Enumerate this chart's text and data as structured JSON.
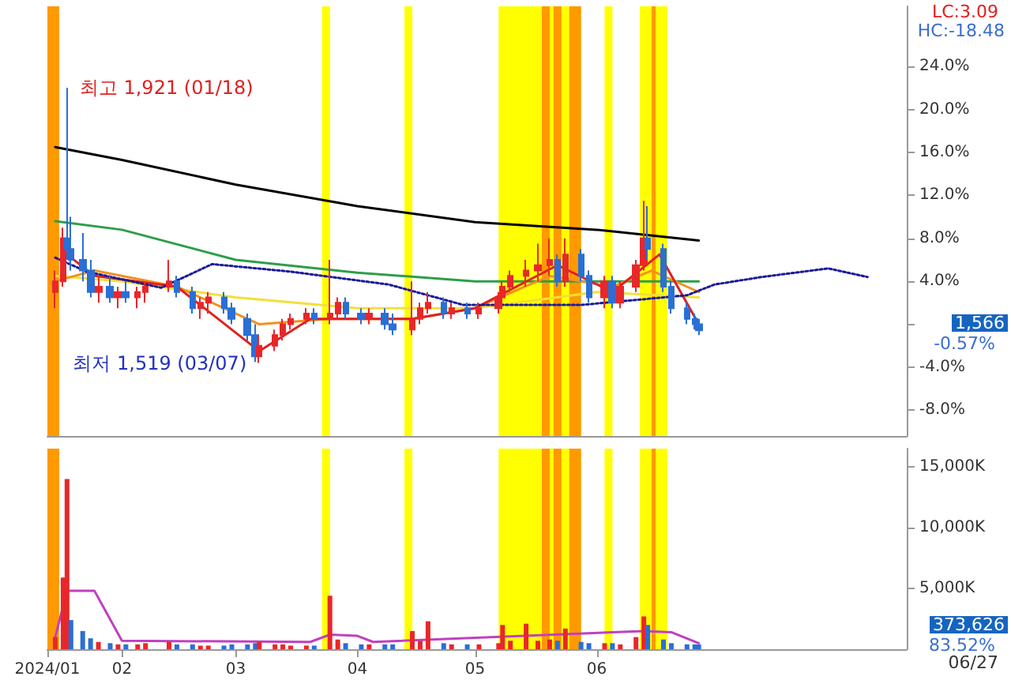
{
  "chart_data": [
    {
      "type": "candlestick",
      "tick_labels": "y",
      "x": [
        "2024-01-15",
        "2024-01-17",
        "2024-01-18",
        "2024-01-19",
        "2024-01-22",
        "2024-01-24",
        "2024-01-26",
        "2024-01-29",
        "2024-01-31",
        "2024-02-02",
        "2024-02-05",
        "2024-02-07",
        "2024-02-13",
        "2024-02-15",
        "2024-02-19",
        "2024-02-21",
        "2024-02-23",
        "2024-02-27",
        "2024-02-29",
        "2024-03-04",
        "2024-03-06",
        "2024-03-07",
        "2024-03-11",
        "2024-03-13",
        "2024-03-15",
        "2024-03-19",
        "2024-03-21",
        "2024-03-25",
        "2024-03-27",
        "2024-03-29",
        "2024-04-02",
        "2024-04-04",
        "2024-04-08",
        "2024-04-10",
        "2024-04-15",
        "2024-04-17",
        "2024-04-19",
        "2024-04-23",
        "2024-04-25",
        "2024-04-29",
        "2024-05-02",
        "2024-05-07",
        "2024-05-08",
        "2024-05-10",
        "2024-05-14",
        "2024-05-17",
        "2024-05-20",
        "2024-05-22",
        "2024-05-24",
        "2024-05-28",
        "2024-05-30",
        "2024-06-03",
        "2024-06-05",
        "2024-06-07",
        "2024-06-11",
        "2024-06-13",
        "2024-06-14",
        "2024-06-18",
        "2024-06-20",
        "2024-06-24",
        "2024-06-26",
        "2024-06-27"
      ],
      "ohlc": [
        [
          3,
          5,
          1.5,
          4
        ],
        [
          4,
          9,
          3.5,
          8
        ],
        [
          8,
          22,
          6,
          7
        ],
        [
          7,
          10,
          5,
          6
        ],
        [
          6,
          8.5,
          4,
          5
        ],
        [
          5,
          6,
          2.5,
          3
        ],
        [
          3,
          4.5,
          2,
          3.5
        ],
        [
          3.5,
          4.5,
          2,
          2.5
        ],
        [
          2.5,
          3.5,
          1.5,
          3
        ],
        [
          3,
          4,
          2,
          2.5
        ],
        [
          2.5,
          3.5,
          1.5,
          3
        ],
        [
          3,
          4,
          2,
          3.5
        ],
        [
          3.5,
          6,
          3,
          4
        ],
        [
          4,
          4.5,
          2.5,
          3
        ],
        [
          3,
          3.5,
          1,
          1.5
        ],
        [
          1.5,
          2.5,
          0.5,
          2
        ],
        [
          2,
          3,
          1,
          2.5
        ],
        [
          2.5,
          3,
          1,
          1.5
        ],
        [
          1.5,
          2,
          0,
          0.5
        ],
        [
          0.5,
          1,
          -1.5,
          -1
        ],
        [
          -1,
          0,
          -3.5,
          -3
        ],
        [
          -3,
          -1,
          -3.6,
          -2
        ],
        [
          -2,
          -0.5,
          -2.5,
          -1
        ],
        [
          -1,
          0.5,
          -1.5,
          0
        ],
        [
          0,
          1,
          -0.5,
          0.5
        ],
        [
          0.5,
          1.5,
          0,
          1
        ],
        [
          1,
          1.5,
          0,
          0.5
        ],
        [
          0.5,
          6,
          0,
          1
        ],
        [
          1,
          2.5,
          0.5,
          2
        ],
        [
          2,
          2.5,
          0.5,
          1
        ],
        [
          1,
          1.5,
          0,
          0.5
        ],
        [
          0.5,
          1.5,
          0,
          1
        ],
        [
          1,
          1.5,
          -0.5,
          0
        ],
        [
          0,
          1,
          -1,
          -0.5
        ],
        [
          -0.5,
          4,
          -1,
          0.5
        ],
        [
          0.5,
          2,
          0,
          1.5
        ],
        [
          1.5,
          3,
          1,
          2
        ],
        [
          2,
          2.5,
          0.5,
          1
        ],
        [
          1,
          2,
          0.5,
          1.5
        ],
        [
          1.5,
          2,
          0.5,
          1
        ],
        [
          1,
          2,
          0.5,
          1.5
        ],
        [
          1.5,
          3,
          1,
          2.5
        ],
        [
          2.5,
          4,
          2,
          3.5
        ],
        [
          3.5,
          5,
          3,
          4.5
        ],
        [
          4.5,
          6,
          3.5,
          5
        ],
        [
          5,
          7.5,
          4,
          5.5
        ],
        [
          5.5,
          8,
          4.5,
          6
        ],
        [
          6,
          6.5,
          3.5,
          4
        ],
        [
          4,
          8,
          3.5,
          6.5
        ],
        [
          6.5,
          7,
          4,
          4.5
        ],
        [
          4.5,
          5,
          2,
          2.5
        ],
        [
          2.5,
          4.5,
          1.5,
          4
        ],
        [
          4,
          4.5,
          1.5,
          2
        ],
        [
          2,
          4,
          1.5,
          3.5
        ],
        [
          3.5,
          6,
          3,
          5.5
        ],
        [
          5.5,
          11.5,
          5,
          8
        ],
        [
          8,
          11,
          6,
          7
        ],
        [
          7,
          7.5,
          3,
          3.5
        ],
        [
          3.5,
          4,
          1,
          1.5
        ],
        [
          1.5,
          2,
          0,
          0.5
        ],
        [
          0.5,
          1,
          -0.5,
          0
        ],
        [
          0,
          0.5,
          -1,
          -0.57
        ]
      ],
      "colors": [
        "#e8272a",
        "#e8272a",
        "#2a6fd6",
        "#2a6fd6",
        "#2a6fd6",
        "#2a6fd6",
        "#e8272a",
        "#2a6fd6",
        "#e8272a",
        "#2a6fd6",
        "#e8272a",
        "#e8272a",
        "#e8272a",
        "#2a6fd6",
        "#2a6fd6",
        "#e8272a",
        "#e8272a",
        "#2a6fd6",
        "#2a6fd6",
        "#2a6fd6",
        "#2a6fd6",
        "#e8272a",
        "#e8272a",
        "#e8272a",
        "#e8272a",
        "#e8272a",
        "#2a6fd6",
        "#e8272a",
        "#e8272a",
        "#2a6fd6",
        "#2a6fd6",
        "#e8272a",
        "#2a6fd6",
        "#2a6fd6",
        "#e8272a",
        "#e8272a",
        "#e8272a",
        "#2a6fd6",
        "#e8272a",
        "#2a6fd6",
        "#e8272a",
        "#e8272a",
        "#e8272a",
        "#e8272a",
        "#e8272a",
        "#e8272a",
        "#e8272a",
        "#2a6fd6",
        "#e8272a",
        "#2a6fd6",
        "#2a6fd6",
        "#e8272a",
        "#2a6fd6",
        "#e8272a",
        "#e8272a",
        "#e8272a",
        "#2a6fd6",
        "#2a6fd6",
        "#2a6fd6",
        "#2a6fd6",
        "#2a6fd6",
        "#2a6fd6"
      ],
      "series": [
        {
          "type": "line",
          "color": "#000000",
          "x": [
            "2024-01-15",
            "2024-02-01",
            "2024-03-01",
            "2024-04-01",
            "2024-05-01",
            "2024-06-01",
            "2024-06-27"
          ],
          "values": [
            16.5,
            15.3,
            13,
            11,
            9.5,
            8.8,
            7.8
          ]
        },
        {
          "type": "line",
          "color": "#2e9e4a",
          "x": [
            "2024-01-15",
            "2024-02-01",
            "2024-03-01",
            "2024-04-01",
            "2024-05-01",
            "2024-06-01",
            "2024-06-27"
          ],
          "values": [
            9.6,
            8.8,
            6,
            4.8,
            4,
            4,
            4
          ]
        },
        {
          "type": "line",
          "color": "#f2e03a",
          "x": [
            "2024-01-15",
            "2024-02-01",
            "2024-03-01",
            "2024-04-01",
            "2024-05-01",
            "2024-06-01",
            "2024-06-27"
          ],
          "values": [
            4.5,
            4,
            2.5,
            1.5,
            1.5,
            3,
            2.5
          ]
        },
        {
          "type": "line",
          "color": "#f5901e",
          "x": [
            "2024-01-15",
            "2024-01-25",
            "2024-02-15",
            "2024-03-07",
            "2024-03-25",
            "2024-04-15",
            "2024-05-01",
            "2024-05-20",
            "2024-06-05",
            "2024-06-15",
            "2024-06-27"
          ],
          "values": [
            4,
            5,
            3.5,
            0,
            0.5,
            0.5,
            1.5,
            4.5,
            3.5,
            5,
            3
          ]
        },
        {
          "type": "line",
          "color": "#e02020",
          "x": [
            "2024-01-18",
            "2024-01-25",
            "2024-02-15",
            "2024-03-07",
            "2024-03-20",
            "2024-04-15",
            "2024-05-01",
            "2024-05-22",
            "2024-06-05",
            "2024-06-17",
            "2024-06-27"
          ],
          "values": [
            6.5,
            4.5,
            3.5,
            -2.5,
            0.5,
            0.5,
            1.5,
            5.5,
            3,
            6.5,
            0
          ]
        },
        {
          "type": "line",
          "color": "#1a1a9a",
          "line_style": "dotted",
          "x": [
            "2024-01-15",
            "2024-01-23",
            "2024-02-11",
            "2024-02-24",
            "2024-03-15",
            "2024-04-09",
            "2024-04-28",
            "2024-05-28",
            "2024-06-24",
            "2024-07-01",
            "2024-07-13",
            "2024-07-30",
            "2024-08-09"
          ],
          "values": [
            6.2,
            4.9,
            3.4,
            5.6,
            4.9,
            3.7,
            1.8,
            1.8,
            2.7,
            3.7,
            4.4,
            5.2,
            4.4
          ]
        }
      ],
      "xlim": [
        "2024-01-13",
        "2024-08-19"
      ],
      "ylim": [
        -10.4,
        29.6
      ],
      "yticks": [
        {
          "value": -8,
          "label": "-8.0%"
        },
        {
          "value": -4,
          "label": "-4.0%"
        },
        {
          "value": 0,
          "label": null
        },
        {
          "value": 4,
          "label": "4.0%"
        },
        {
          "value": 8,
          "label": "8.0%"
        },
        {
          "value": 12,
          "label": "12.0%"
        },
        {
          "value": 16,
          "label": "16.0%"
        },
        {
          "value": 20,
          "label": "20.0%"
        },
        {
          "value": 24,
          "label": "24.0%"
        }
      ],
      "bands": [
        {
          "axis": "x",
          "from": "2024-01-13",
          "to": "2024-01-16",
          "color": "#ff9900"
        },
        {
          "axis": "x",
          "from": "2024-03-23",
          "to": "2024-03-25",
          "color": "#ffff00"
        },
        {
          "axis": "x",
          "from": "2024-04-13",
          "to": "2024-04-15",
          "color": "#ffff00"
        },
        {
          "axis": "x",
          "from": "2024-05-07",
          "to": "2024-05-28",
          "color": "#ffff00"
        },
        {
          "axis": "x",
          "from": "2024-05-18",
          "to": "2024-05-20",
          "color": "#ff9900"
        },
        {
          "axis": "x",
          "from": "2024-05-21",
          "to": "2024-05-23",
          "color": "#ff9900"
        },
        {
          "axis": "x",
          "from": "2024-05-25",
          "to": "2024-05-28",
          "color": "#ff9900"
        },
        {
          "axis": "x",
          "from": "2024-06-03",
          "to": "2024-06-05",
          "color": "#ffff00"
        },
        {
          "axis": "x",
          "from": "2024-06-12",
          "to": "2024-06-19",
          "color": "#ffff00"
        },
        {
          "axis": "x",
          "from": "2024-06-15",
          "to": "2024-06-16",
          "color": "#ff9900"
        }
      ],
      "annotations": [
        {
          "text": "최고 1,921 (01/18)",
          "x": "2024-01-18",
          "y": 22
        },
        {
          "text": "최저 1,519 (03/07)",
          "x": "2024-03-07",
          "y": -3.6
        },
        "LC:3.09",
        "HC:-18.48",
        "1,566",
        "-0.57%"
      ]
    },
    {
      "type": "bar",
      "x": [
        "2024-01-15",
        "2024-01-17",
        "2024-01-18",
        "2024-01-19",
        "2024-01-22",
        "2024-01-24",
        "2024-01-26",
        "2024-01-29",
        "2024-01-31",
        "2024-02-02",
        "2024-02-05",
        "2024-02-07",
        "2024-02-13",
        "2024-02-15",
        "2024-02-19",
        "2024-02-21",
        "2024-02-23",
        "2024-02-27",
        "2024-02-29",
        "2024-03-04",
        "2024-03-06",
        "2024-03-07",
        "2024-03-11",
        "2024-03-13",
        "2024-03-15",
        "2024-03-19",
        "2024-03-21",
        "2024-03-25",
        "2024-03-27",
        "2024-03-29",
        "2024-04-02",
        "2024-04-04",
        "2024-04-08",
        "2024-04-10",
        "2024-04-15",
        "2024-04-17",
        "2024-04-19",
        "2024-04-23",
        "2024-04-25",
        "2024-04-29",
        "2024-05-02",
        "2024-05-07",
        "2024-05-08",
        "2024-05-10",
        "2024-05-14",
        "2024-05-17",
        "2024-05-20",
        "2024-05-22",
        "2024-05-24",
        "2024-05-28",
        "2024-05-30",
        "2024-06-03",
        "2024-06-05",
        "2024-06-07",
        "2024-06-11",
        "2024-06-13",
        "2024-06-14",
        "2024-06-18",
        "2024-06-20",
        "2024-06-24",
        "2024-06-26",
        "2024-06-27"
      ],
      "values": [
        1000,
        5900,
        14000,
        2400,
        1500,
        900,
        600,
        500,
        400,
        400,
        400,
        500,
        600,
        400,
        400,
        300,
        300,
        300,
        400,
        400,
        500,
        600,
        400,
        400,
        300,
        300,
        300,
        4400,
        800,
        500,
        400,
        400,
        400,
        400,
        1500,
        700,
        2300,
        500,
        400,
        400,
        400,
        500,
        2000,
        700,
        2100,
        700,
        800,
        700,
        1700,
        600,
        500,
        500,
        500,
        400,
        1000,
        2700,
        2000,
        800,
        500,
        400,
        400,
        400
      ],
      "colors": [
        "#e8272a",
        "#e8272a",
        "#e8272a",
        "#2a6fd6",
        "#2a6fd6",
        "#2a6fd6",
        "#e8272a",
        "#2a6fd6",
        "#e8272a",
        "#2a6fd6",
        "#e8272a",
        "#e8272a",
        "#e8272a",
        "#2a6fd6",
        "#2a6fd6",
        "#e8272a",
        "#e8272a",
        "#2a6fd6",
        "#2a6fd6",
        "#2a6fd6",
        "#2a6fd6",
        "#e8272a",
        "#e8272a",
        "#e8272a",
        "#e8272a",
        "#e8272a",
        "#2a6fd6",
        "#e8272a",
        "#e8272a",
        "#2a6fd6",
        "#2a6fd6",
        "#e8272a",
        "#2a6fd6",
        "#2a6fd6",
        "#e8272a",
        "#e8272a",
        "#e8272a",
        "#2a6fd6",
        "#e8272a",
        "#2a6fd6",
        "#e8272a",
        "#e8272a",
        "#e8272a",
        "#e8272a",
        "#e8272a",
        "#e8272a",
        "#e8272a",
        "#2a6fd6",
        "#e8272a",
        "#2a6fd6",
        "#2a6fd6",
        "#e8272a",
        "#2a6fd6",
        "#e8272a",
        "#e8272a",
        "#e8272a",
        "#2a6fd6",
        "#2a6fd6",
        "#2a6fd6",
        "#2a6fd6",
        "#2a6fd6",
        "#2a6fd6"
      ],
      "series": [
        {
          "type": "line",
          "color": "#c040c0",
          "x": [
            "2024-01-15",
            "2024-01-18",
            "2024-01-25",
            "2024-02-01",
            "2024-03-20",
            "2024-03-25",
            "2024-04-01",
            "2024-04-05",
            "2024-06-13",
            "2024-06-20",
            "2024-06-27"
          ],
          "values": [
            1000,
            4800,
            4800,
            700,
            600,
            1200,
            1100,
            600,
            1500,
            1400,
            500
          ]
        }
      ],
      "xlim": [
        "2024-01-13",
        "2024-08-19"
      ],
      "xticks": [
        {
          "value": "2024-01-13",
          "label": "2024/01"
        },
        {
          "value": "2024-02-01",
          "label": "02"
        },
        {
          "value": "2024-03-01",
          "label": "03"
        },
        {
          "value": "2024-04-01",
          "label": "04"
        },
        {
          "value": "2024-05-01",
          "label": "05"
        },
        {
          "value": "2024-06-01",
          "label": "06"
        }
      ],
      "ylim": [
        0,
        16500
      ],
      "yticks": [
        {
          "value": 5000,
          "label": "5,000K"
        },
        {
          "value": 10000,
          "label": "10,000K"
        },
        {
          "value": 15000,
          "label": "15,000K"
        }
      ],
      "bands": [
        {
          "axis": "x",
          "from": "2024-01-13",
          "to": "2024-01-16",
          "color": "#ff9900"
        },
        {
          "axis": "x",
          "from": "2024-03-23",
          "to": "2024-03-25",
          "color": "#ffff00"
        },
        {
          "axis": "x",
          "from": "2024-04-13",
          "to": "2024-04-15",
          "color": "#ffff00"
        },
        {
          "axis": "x",
          "from": "2024-05-07",
          "to": "2024-05-28",
          "color": "#ffff00"
        },
        {
          "axis": "x",
          "from": "2024-05-18",
          "to": "2024-05-20",
          "color": "#ff9900"
        },
        {
          "axis": "x",
          "from": "2024-05-21",
          "to": "2024-05-23",
          "color": "#ff9900"
        },
        {
          "axis": "x",
          "from": "2024-05-25",
          "to": "2024-05-28",
          "color": "#ff9900"
        },
        {
          "axis": "x",
          "from": "2024-06-03",
          "to": "2024-06-05",
          "color": "#ffff00"
        },
        {
          "axis": "x",
          "from": "2024-06-12",
          "to": "2024-06-19",
          "color": "#ffff00"
        },
        {
          "axis": "x",
          "from": "2024-06-15",
          "to": "2024-06-16",
          "color": "#ff9900"
        }
      ],
      "annotations": [
        "373,626",
        "83.52%",
        "06/27"
      ]
    }
  ]
}
